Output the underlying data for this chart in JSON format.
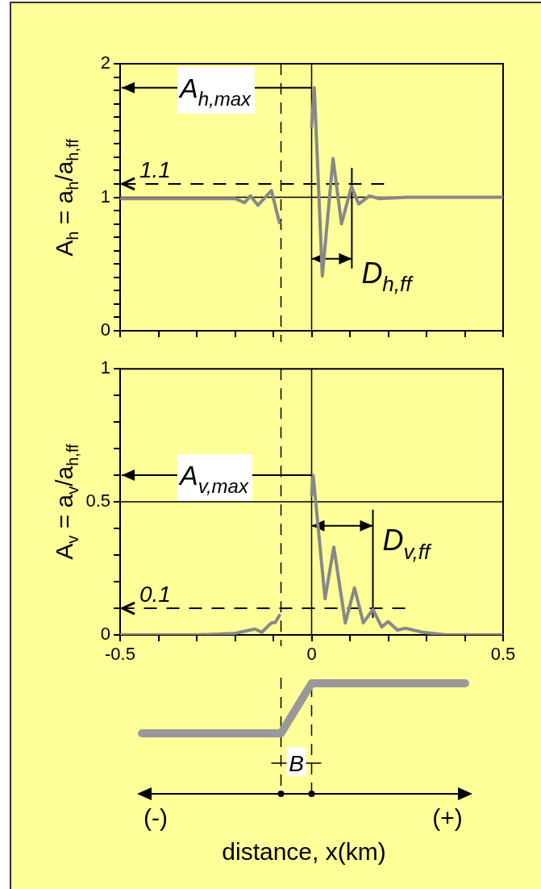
{
  "chart_data": [
    {
      "type": "line",
      "ylabel": "A$_{h}$ = a$_{h}$/a$_{h,ff}$",
      "xlim": [
        -0.5,
        0.5
      ],
      "xticks": [
        {
          "value": -0.5,
          "label": null
        },
        {
          "value": -0.4,
          "label": null
        },
        {
          "value": -0.3,
          "label": null
        },
        {
          "value": -0.2,
          "label": null
        },
        {
          "value": -0.1,
          "label": null
        },
        {
          "value": 0,
          "label": null
        },
        {
          "value": 0.1,
          "label": null
        },
        {
          "value": 0.2,
          "label": null
        },
        {
          "value": 0.3,
          "label": null
        },
        {
          "value": 0.4,
          "label": null
        },
        {
          "value": 0.5,
          "label": null
        }
      ],
      "ylim": [
        0,
        2
      ],
      "yticks": [
        0,
        {
          "value": 0.1,
          "label": null
        },
        {
          "value": 0.2,
          "label": null
        },
        {
          "value": 0.3,
          "label": null
        },
        {
          "value": 0.4,
          "label": null
        },
        {
          "value": 0.5,
          "label": null
        },
        {
          "value": 0.6,
          "label": null
        },
        {
          "value": 0.7,
          "label": null
        },
        {
          "value": 0.8,
          "label": null
        },
        {
          "value": 0.9,
          "label": null
        },
        1,
        {
          "value": 1.1,
          "label": null
        },
        {
          "value": 1.2,
          "label": null
        },
        {
          "value": 1.3,
          "label": null
        },
        {
          "value": 1.4,
          "label": null
        },
        {
          "value": 1.5,
          "label": null
        },
        {
          "value": 1.6,
          "label": null
        },
        {
          "value": 1.7,
          "label": null
        },
        {
          "value": 1.8,
          "label": null
        },
        {
          "value": 1.9,
          "label": null
        },
        2
      ],
      "tick_labels": "y",
      "series": [
        {
          "color": "#888888",
          "x": [
            -0.5,
            -0.3,
            -0.2,
            -0.175,
            -0.16,
            -0.14,
            -0.105,
            -0.084,
            -0.04,
            0,
            0.007,
            0.028,
            0.056,
            0.078,
            0.104,
            0.123,
            0.151,
            0.175,
            0.25,
            0.5
          ],
          "values": [
            0.99,
            0.99,
            0.99,
            0.96,
            1.01,
            0.94,
            1.05,
            0.81,
            null,
            1.53,
            1.82,
            0.41,
            1.29,
            0.8,
            1.08,
            0.95,
            1.01,
            0.99,
            1,
            1
          ]
        }
      ],
      "ref_lines": [
        {
          "axis": "y",
          "value": 1,
          "color": "#000000"
        },
        {
          "axis": "x",
          "value": 0,
          "color": "#000000"
        },
        {
          "axis": "x",
          "value": -0.08,
          "color": "#000000",
          "line_style": "dashed"
        },
        {
          "axis": "y",
          "value": 1.1,
          "color": "#000000",
          "line_style": "dashed",
          "label": "1.1"
        },
        {
          "axis": "x",
          "value": 0.105,
          "color": "#000000",
          "label": "D$_{h,ff}$"
        }
      ],
      "annotations": [
        {
          "text": "A$_{h,max}$",
          "x": 0,
          "y": 1.82
        }
      ]
    },
    {
      "type": "line",
      "ylabel": "A$_{v}$ = a$_{v}$/a$_{h,ff}$",
      "xlabel": "distance,  x(km)",
      "xlim": [
        -0.5,
        0.5
      ],
      "xticks": [
        -0.5,
        {
          "value": -0.4,
          "label": null
        },
        {
          "value": -0.3,
          "label": null
        },
        {
          "value": -0.2,
          "label": null
        },
        {
          "value": -0.1,
          "label": null
        },
        0,
        {
          "value": 0.1,
          "label": null
        },
        {
          "value": 0.2,
          "label": null
        },
        {
          "value": 0.3,
          "label": null
        },
        {
          "value": 0.4,
          "label": null
        },
        0.5
      ],
      "ylim": [
        0,
        1
      ],
      "yticks": [
        0,
        {
          "value": 0.1,
          "label": null
        },
        {
          "value": 0.2,
          "label": null
        },
        {
          "value": 0.3,
          "label": null
        },
        {
          "value": 0.4,
          "label": null
        },
        0.5,
        {
          "value": 0.6,
          "label": null
        },
        {
          "value": 0.7,
          "label": null
        },
        {
          "value": 0.8,
          "label": null
        },
        {
          "value": 0.9,
          "label": null
        },
        1
      ],
      "series": [
        {
          "color": "#888888",
          "x": [
            -0.5,
            -0.3,
            -0.203,
            -0.148,
            -0.13,
            -0.105,
            -0.095,
            -0.084,
            -0.04,
            0,
            0.004,
            0.035,
            0.058,
            0.088,
            0.112,
            0.135,
            0.16,
            0.183,
            0.2,
            0.224,
            0.245,
            0.29,
            0.35,
            0.5
          ],
          "values": [
            0,
            0,
            0.005,
            0.022,
            0.01,
            0.045,
            0.047,
            0.073,
            null,
            0.525,
            0.6,
            0.136,
            0.33,
            0.045,
            0.177,
            0.045,
            0.096,
            0.03,
            0.05,
            0.018,
            0.025,
            0.01,
            0,
            0
          ]
        }
      ],
      "ref_lines": [
        {
          "axis": "y",
          "value": 0.5,
          "color": "#000000"
        },
        {
          "axis": "x",
          "value": 0,
          "color": "#000000"
        },
        {
          "axis": "x",
          "value": -0.08,
          "color": "#000000",
          "line_style": "dashed"
        },
        {
          "axis": "y",
          "value": 0.1,
          "color": "#000000",
          "line_style": "dashed",
          "label": "0.1"
        },
        {
          "axis": "x",
          "value": 0.16,
          "color": "#000000",
          "label": "D$_{v,ff}$"
        }
      ],
      "annotations": [
        {
          "text": "A$_{v,max}$",
          "x": 0,
          "y": 0.6
        },
        "B",
        "(-)",
        "(+)"
      ]
    }
  ]
}
